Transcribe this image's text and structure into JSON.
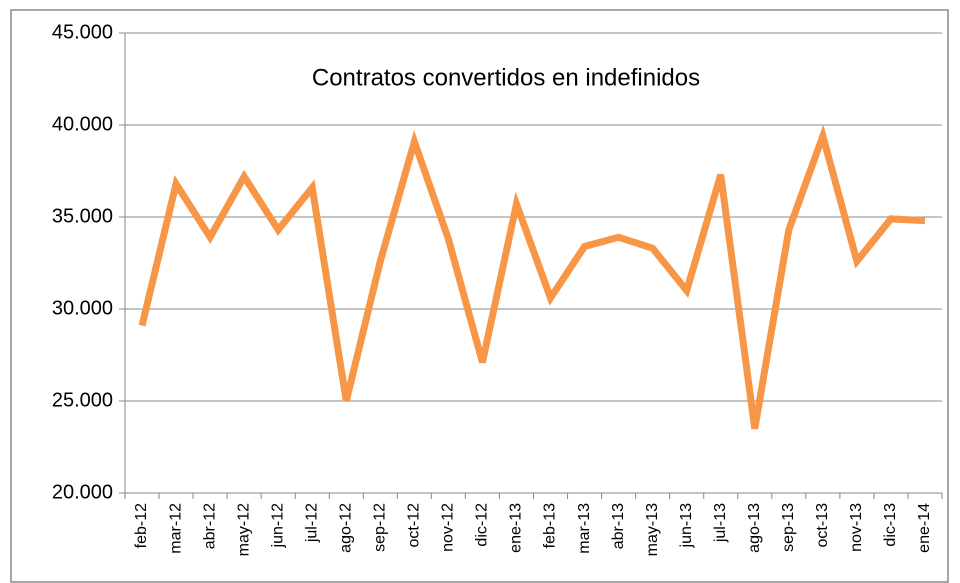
{
  "chart_data": {
    "type": "line",
    "title": "Contratos convertidos en indefinidos",
    "categories": [
      "feb-12",
      "mar-12",
      "abr-12",
      "may-12",
      "jun-12",
      "jul-12",
      "ago-12",
      "sep-12",
      "oct-12",
      "nov-12",
      "dic-12",
      "ene-13",
      "feb-13",
      "mar-13",
      "abr-13",
      "may-13",
      "jun-13",
      "jul-13",
      "ago-13",
      "sep-13",
      "oct-13",
      "nov-13",
      "dic-13",
      "ene-14"
    ],
    "series": [
      {
        "name": "Contratos convertidos en indefinidos",
        "color": "#f79646",
        "values": [
          29100,
          36800,
          33900,
          37200,
          34300,
          36600,
          25000,
          32600,
          39100,
          33800,
          27100,
          35700,
          30600,
          33400,
          33900,
          33300,
          31000,
          37300,
          23500,
          34300,
          39400,
          32600,
          34900,
          34800
        ]
      }
    ],
    "ylim": [
      20000,
      45000
    ],
    "yticks": [
      {
        "value": 20000,
        "label": "20.000"
      },
      {
        "value": 25000,
        "label": "25.000"
      },
      {
        "value": 30000,
        "label": "30.000"
      },
      {
        "value": 35000,
        "label": "35.000"
      },
      {
        "value": 40000,
        "label": "40.000"
      },
      {
        "value": 45000,
        "label": "45.000"
      }
    ],
    "grid": true,
    "legend": false
  }
}
